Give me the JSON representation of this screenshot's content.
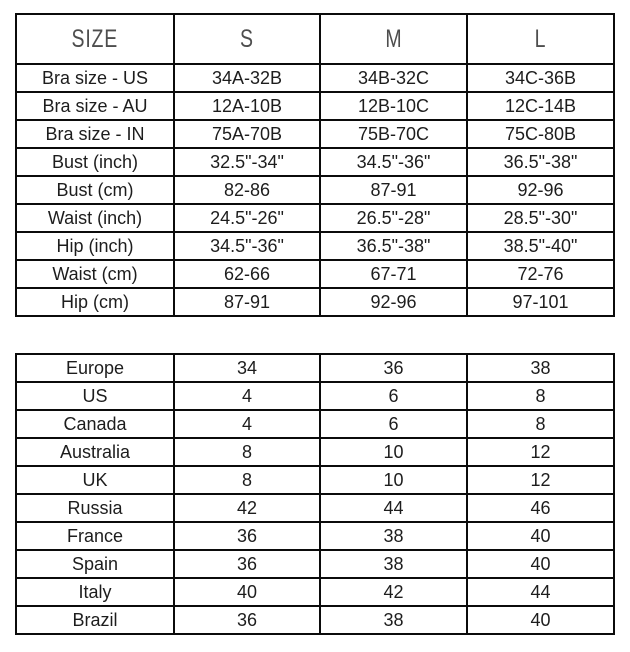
{
  "colors": {
    "background": "#ffffff",
    "border": "#0b0b0b",
    "header_text": "#4e4e4e",
    "body_text": "#1d1d1d"
  },
  "chart_data": [
    {
      "type": "table",
      "columns": [
        "SIZE",
        "S",
        "M",
        "L"
      ],
      "rows": [
        [
          "Bra size - US",
          "34A-32B",
          "34B-32C",
          "34C-36B"
        ],
        [
          "Bra size - AU",
          "12A-10B",
          "12B-10C",
          "12C-14B"
        ],
        [
          "Bra size - IN",
          "75A-70B",
          "75B-70C",
          "75C-80B"
        ],
        [
          "Bust (inch)",
          "32.5\"-34\"",
          "34.5\"-36\"",
          "36.5\"-38\""
        ],
        [
          "Bust (cm)",
          "82-86",
          "87-91",
          "92-96"
        ],
        [
          "Waist (inch)",
          "24.5\"-26\"",
          "26.5\"-28\"",
          "28.5\"-30\""
        ],
        [
          "Hip (inch)",
          "34.5\"-36\"",
          "36.5\"-38\"",
          "38.5\"-40\""
        ],
        [
          "Waist (cm)",
          "62-66",
          "67-71",
          "72-76"
        ],
        [
          "Hip (cm)",
          "87-91",
          "92-96",
          "97-101"
        ]
      ]
    },
    {
      "type": "table",
      "columns": [],
      "rows": [
        [
          "Europe",
          "34",
          "36",
          "38"
        ],
        [
          "US",
          "4",
          "6",
          "8"
        ],
        [
          "Canada",
          "4",
          "6",
          "8"
        ],
        [
          "Australia",
          "8",
          "10",
          "12"
        ],
        [
          "UK",
          "8",
          "10",
          "12"
        ],
        [
          "Russia",
          "42",
          "44",
          "46"
        ],
        [
          "France",
          "36",
          "38",
          "40"
        ],
        [
          "Spain",
          "36",
          "38",
          "40"
        ],
        [
          "Italy",
          "40",
          "42",
          "44"
        ],
        [
          "Brazil",
          "36",
          "38",
          "40"
        ]
      ]
    }
  ]
}
